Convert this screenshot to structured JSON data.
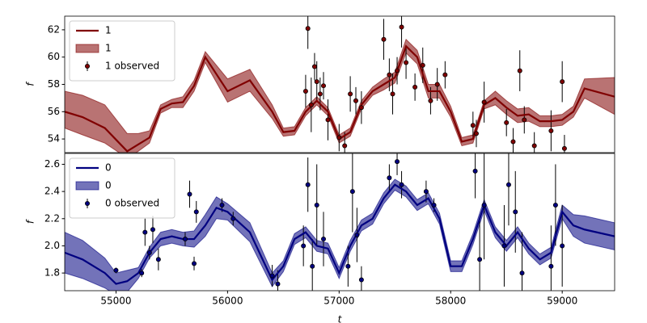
{
  "chart_data": [
    {
      "type": "line",
      "ylabel": "f",
      "x": [
        54540,
        54700,
        54900,
        55100,
        55200,
        55300,
        55400,
        55500,
        55600,
        55700,
        55800,
        56000,
        56200,
        56400,
        56500,
        56600,
        56700,
        56800,
        56900,
        57000,
        57100,
        57200,
        57300,
        57400,
        57500,
        57600,
        57700,
        57800,
        57900,
        58000,
        58100,
        58200,
        58300,
        58400,
        58500,
        58600,
        58700,
        58800,
        58900,
        59000,
        59100,
        59200,
        59470
      ],
      "xlim": [
        54540,
        59470
      ],
      "ylim": [
        53,
        63
      ],
      "yticks": [
        54,
        56,
        58,
        60,
        62
      ],
      "legend": "upper left",
      "series": [
        {
          "name": "1",
          "color": "#800000",
          "values": [
            56.0,
            55.6,
            54.8,
            53.1,
            53.6,
            54.1,
            56.2,
            56.6,
            56.7,
            57.9,
            60.0,
            57.5,
            58.3,
            56.0,
            54.5,
            54.6,
            56.0,
            56.8,
            56.0,
            54.0,
            54.5,
            56.5,
            57.5,
            58.0,
            58.5,
            60.8,
            60.0,
            57.5,
            57.5,
            56.0,
            53.8,
            54.0,
            56.5,
            57.0,
            56.3,
            55.7,
            55.8,
            55.3,
            55.3,
            55.4,
            56.0,
            57.7,
            57.1
          ]
        },
        {
          "name": "1",
          "color": "#800000",
          "lower": [
            54.8,
            54.3,
            53.7,
            52.6,
            53.1,
            53.7,
            55.9,
            56.3,
            56.3,
            57.5,
            59.6,
            56.7,
            57.5,
            55.5,
            54.2,
            54.3,
            55.7,
            56.5,
            55.7,
            53.7,
            54.2,
            56.2,
            57.2,
            57.6,
            58.1,
            60.3,
            59.5,
            57.0,
            57.0,
            55.6,
            53.5,
            53.7,
            56.2,
            56.5,
            55.8,
            55.2,
            55.3,
            54.9,
            54.9,
            55.0,
            55.6,
            57.0,
            55.8
          ]
        },
        {
          "name": "1",
          "color": "#800000",
          "upper": [
            57.5,
            57.2,
            56.5,
            54.4,
            54.4,
            54.6,
            56.5,
            56.9,
            57.1,
            58.3,
            60.4,
            58.4,
            59.1,
            56.5,
            54.8,
            54.9,
            56.3,
            57.1,
            56.3,
            54.3,
            54.8,
            56.8,
            57.8,
            58.4,
            58.9,
            61.3,
            60.5,
            58.0,
            58.0,
            56.4,
            54.1,
            54.3,
            56.8,
            57.5,
            56.8,
            56.2,
            56.3,
            55.7,
            55.7,
            55.8,
            56.4,
            58.4,
            58.5
          ]
        },
        {
          "name": "1 observed",
          "color": "#800000",
          "x": [
            56700,
            56720,
            56750,
            56780,
            56800,
            56830,
            56860,
            56900,
            57000,
            57050,
            57100,
            57150,
            57200,
            57400,
            57450,
            57480,
            57520,
            57560,
            57600,
            57680,
            57750,
            57820,
            57880,
            57950,
            58200,
            58230,
            58300,
            58500,
            58560,
            58620,
            58660,
            58750,
            58900,
            59000,
            59020
          ],
          "values": [
            57.5,
            62.1,
            56.5,
            59.3,
            58.2,
            57.3,
            57.9,
            55.4,
            54.1,
            53.5,
            57.3,
            56.8,
            56.3,
            61.3,
            58.7,
            57.3,
            59.0,
            62.2,
            59.6,
            57.8,
            59.4,
            56.8,
            58.0,
            58.7,
            55.0,
            54.4,
            56.7,
            55.2,
            53.8,
            59.0,
            55.4,
            53.5,
            54.6,
            58.2,
            53.3
          ],
          "errors": [
            1.2,
            1.5,
            2.0,
            1.0,
            1.5,
            1.2,
            1.0,
            1.5,
            1.0,
            1.0,
            1.3,
            1.0,
            1.2,
            1.5,
            1.2,
            1.5,
            1.0,
            1.5,
            1.2,
            1.0,
            1.3,
            1.0,
            1.2,
            1.0,
            1.0,
            1.0,
            1.5,
            1.0,
            1.0,
            1.5,
            1.0,
            1.0,
            1.5,
            1.5,
            1.0
          ]
        }
      ]
    },
    {
      "type": "line",
      "ylabel": "f",
      "xlabel": "t",
      "x": [
        54540,
        54700,
        54900,
        55000,
        55100,
        55200,
        55300,
        55400,
        55500,
        55600,
        55700,
        55800,
        55900,
        56000,
        56200,
        56400,
        56500,
        56600,
        56700,
        56800,
        56900,
        57000,
        57100,
        57200,
        57300,
        57400,
        57500,
        57600,
        57700,
        57800,
        57900,
        58000,
        58100,
        58200,
        58300,
        58400,
        58500,
        58600,
        58700,
        58800,
        58900,
        59000,
        59100,
        59200,
        59470
      ],
      "xlim": [
        54540,
        59470
      ],
      "ylim": [
        1.67,
        2.68
      ],
      "xticks": [
        55000,
        56000,
        57000,
        58000,
        59000
      ],
      "yticks": [
        1.8,
        {
          "value": 2,
          "label": "2.0"
        },
        2.2,
        2.4,
        2.6
      ],
      "legend": "upper left",
      "series": [
        {
          "name": "0",
          "color": "#000080",
          "values": [
            1.95,
            1.9,
            1.8,
            1.72,
            1.74,
            1.8,
            1.95,
            2.05,
            2.07,
            2.05,
            2.05,
            2.15,
            2.28,
            2.25,
            2.1,
            1.75,
            1.85,
            2.05,
            2.1,
            2.0,
            1.98,
            1.8,
            2.0,
            2.15,
            2.2,
            2.35,
            2.45,
            2.4,
            2.3,
            2.35,
            2.2,
            1.85,
            1.85,
            2.05,
            2.3,
            2.1,
            2.0,
            2.1,
            1.98,
            1.9,
            1.95,
            2.25,
            2.15,
            2.12,
            2.07
          ]
        },
        {
          "name": "0",
          "color": "#000080",
          "lower": [
            1.8,
            1.76,
            1.69,
            1.64,
            1.66,
            1.76,
            1.91,
            2.0,
            2.02,
            2.0,
            1.99,
            2.07,
            2.2,
            2.19,
            2.03,
            1.7,
            1.81,
            2.01,
            2.06,
            1.96,
            1.94,
            1.76,
            1.96,
            2.11,
            2.16,
            2.31,
            2.41,
            2.36,
            2.26,
            2.31,
            2.16,
            1.81,
            1.81,
            2.01,
            2.26,
            2.06,
            1.96,
            2.06,
            1.94,
            1.86,
            1.91,
            2.2,
            2.07,
            2.02,
            1.97
          ]
        },
        {
          "name": "0",
          "color": "#000080",
          "upper": [
            2.1,
            2.04,
            1.91,
            1.8,
            1.82,
            1.84,
            1.99,
            2.1,
            2.12,
            2.1,
            2.11,
            2.23,
            2.36,
            2.31,
            2.17,
            1.8,
            1.89,
            2.09,
            2.14,
            2.04,
            2.02,
            1.84,
            2.04,
            2.19,
            2.24,
            2.39,
            2.49,
            2.44,
            2.34,
            2.39,
            2.24,
            1.89,
            1.89,
            2.09,
            2.34,
            2.14,
            2.04,
            2.14,
            2.02,
            1.94,
            1.99,
            2.3,
            2.23,
            2.22,
            2.17
          ]
        },
        {
          "name": "0 observed",
          "color": "#000080",
          "x": [
            55000,
            55230,
            55260,
            55300,
            55330,
            55380,
            55620,
            55660,
            55700,
            55720,
            55950,
            56050,
            56400,
            56450,
            56680,
            56720,
            56760,
            56800,
            56860,
            57080,
            57120,
            57160,
            57200,
            57450,
            57520,
            57560,
            57780,
            57850,
            58220,
            58260,
            58300,
            58480,
            58520,
            58580,
            58640,
            58900,
            58940,
            59000
          ],
          "values": [
            1.82,
            1.8,
            2.1,
            1.95,
            2.12,
            1.9,
            2.05,
            2.38,
            1.87,
            2.25,
            2.3,
            2.2,
            1.78,
            1.72,
            2.0,
            2.45,
            1.85,
            2.3,
            2.05,
            1.85,
            2.4,
            2.08,
            1.75,
            2.5,
            2.62,
            2.45,
            2.4,
            2.3,
            2.55,
            1.9,
            2.3,
            2.0,
            2.45,
            2.25,
            1.8,
            1.85,
            2.3,
            2.0
          ],
          "errors": [
            0.02,
            0.03,
            0.1,
            0.05,
            0.1,
            0.08,
            0.05,
            0.1,
            0.05,
            0.08,
            0.05,
            0.05,
            0.08,
            0.1,
            0.15,
            0.2,
            0.2,
            0.3,
            0.2,
            0.15,
            0.3,
            0.2,
            0.1,
            0.1,
            0.1,
            0.1,
            0.08,
            0.05,
            0.2,
            0.3,
            0.4,
            0.3,
            0.3,
            0.3,
            0.3,
            0.3,
            0.3,
            0.3
          ]
        }
      ]
    }
  ]
}
